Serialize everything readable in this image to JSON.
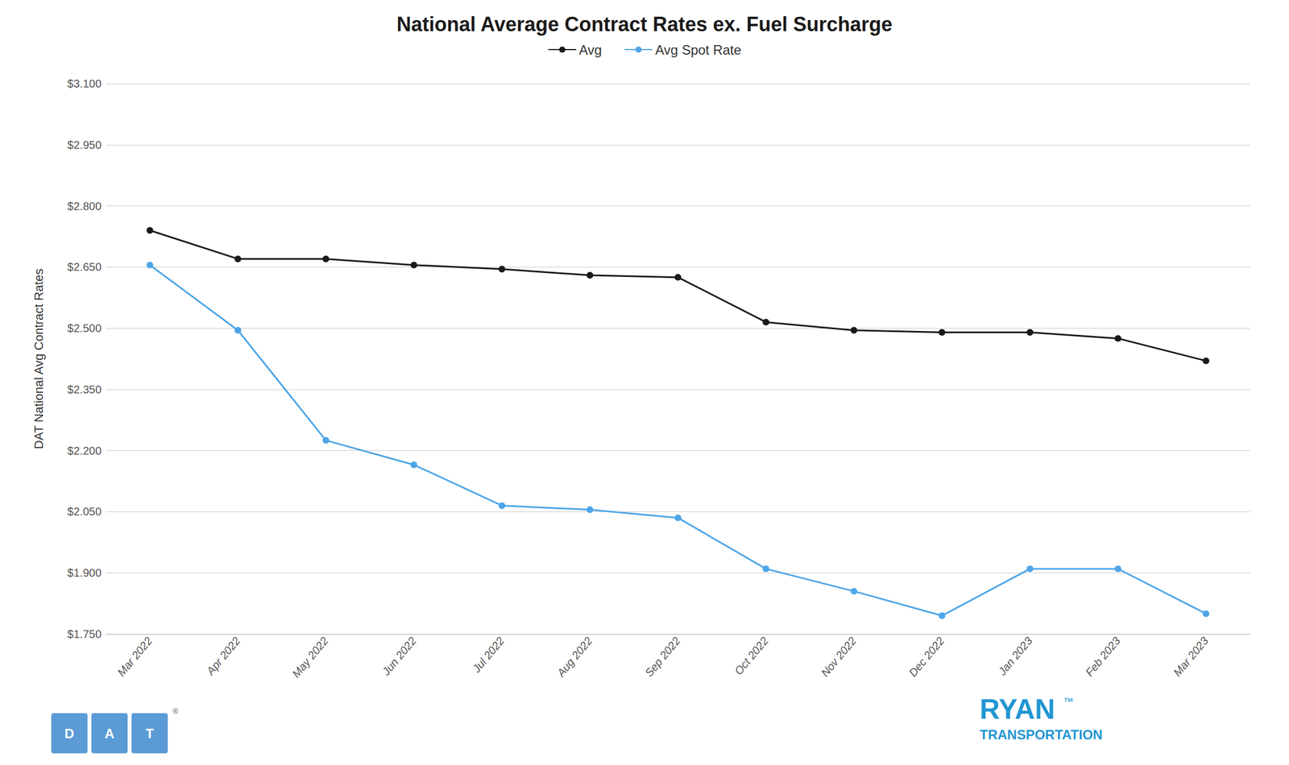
{
  "chart_data": {
    "type": "line",
    "title": "National Average Contract Rates ex. Fuel Surcharge",
    "ylabel": "DAT National Avg Contract Rates",
    "categories": [
      "Mar 2022",
      "Apr 2022",
      "May 2022",
      "Jun 2022",
      "Jul 2022",
      "Aug 2022",
      "Sep 2022",
      "Oct 2022",
      "Nov 2022",
      "Dec 2022",
      "Jan 2023",
      "Feb 2023",
      "Mar 2023"
    ],
    "series": [
      {
        "name": "Avg",
        "color": "#1a1a1a",
        "values": [
          2.74,
          2.67,
          2.67,
          2.655,
          2.645,
          2.63,
          2.625,
          2.515,
          2.495,
          2.49,
          2.49,
          2.475,
          2.42
        ]
      },
      {
        "name": "Avg Spot Rate",
        "color": "#4da6e8",
        "values": [
          2.655,
          2.495,
          2.225,
          2.165,
          2.065,
          2.055,
          2.035,
          1.91,
          1.855,
          1.795,
          1.91,
          1.91,
          1.8
        ]
      }
    ],
    "ylim": [
      1.75,
      3.1
    ],
    "yticks": [
      {
        "value": 1.75,
        "label": "$1.750"
      },
      {
        "value": 1.9,
        "label": "$1.900"
      },
      {
        "value": 2.05,
        "label": "$2.050"
      },
      {
        "value": 2.2,
        "label": "$2.200"
      },
      {
        "value": 2.35,
        "label": "$2.350"
      },
      {
        "value": 2.5,
        "label": "$2.500"
      },
      {
        "value": 2.65,
        "label": "$2.650"
      },
      {
        "value": 2.8,
        "label": "$2.800"
      },
      {
        "value": 2.95,
        "label": "$2.950"
      },
      {
        "value": 3.1,
        "label": "$3.100"
      }
    ],
    "grid": true,
    "legend": "top",
    "marker": "circle",
    "annotations": [
      "D",
      "A",
      "T",
      "®",
      "RYAN",
      "™",
      "TRANSPORTATION"
    ]
  }
}
